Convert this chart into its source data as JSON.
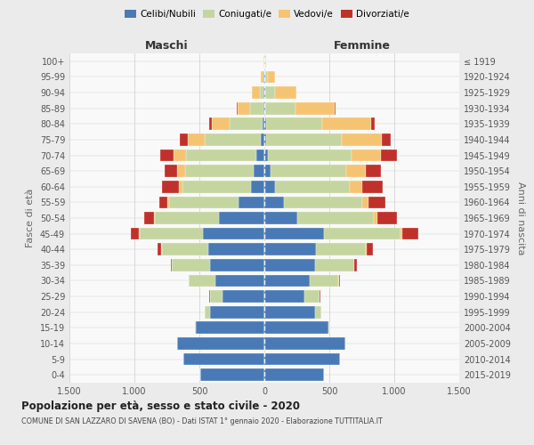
{
  "age_groups": [
    "0-4",
    "5-9",
    "10-14",
    "15-19",
    "20-24",
    "25-29",
    "30-34",
    "35-39",
    "40-44",
    "45-49",
    "50-54",
    "55-59",
    "60-64",
    "65-69",
    "70-74",
    "75-79",
    "80-84",
    "85-89",
    "90-94",
    "95-99",
    "100+"
  ],
  "birth_years": [
    "2015-2019",
    "2010-2014",
    "2005-2009",
    "2000-2004",
    "1995-1999",
    "1990-1994",
    "1985-1989",
    "1980-1984",
    "1975-1979",
    "1970-1974",
    "1965-1969",
    "1960-1964",
    "1955-1959",
    "1950-1954",
    "1945-1949",
    "1940-1944",
    "1935-1939",
    "1930-1934",
    "1925-1929",
    "1920-1924",
    "≤ 1919"
  ],
  "colors": {
    "celibi": "#4a7ab5",
    "coniugati": "#c5d5a0",
    "vedovi": "#f5c472",
    "divorziati": "#c0312b"
  },
  "males": {
    "celibi": [
      490,
      620,
      670,
      530,
      420,
      320,
      380,
      420,
      430,
      470,
      350,
      200,
      100,
      80,
      60,
      30,
      15,
      8,
      5,
      4,
      2
    ],
    "coniugati": [
      0,
      0,
      0,
      5,
      40,
      100,
      200,
      290,
      360,
      490,
      490,
      530,
      530,
      530,
      540,
      430,
      250,
      100,
      30,
      5,
      0
    ],
    "vedovi": [
      0,
      0,
      0,
      0,
      0,
      0,
      0,
      1,
      2,
      5,
      8,
      15,
      30,
      60,
      100,
      130,
      140,
      100,
      60,
      20,
      2
    ],
    "divorziati": [
      0,
      0,
      0,
      0,
      0,
      2,
      5,
      10,
      30,
      65,
      80,
      60,
      130,
      100,
      100,
      60,
      20,
      5,
      2,
      0,
      0
    ]
  },
  "females": {
    "nubili": [
      460,
      580,
      620,
      490,
      390,
      310,
      350,
      390,
      400,
      460,
      250,
      150,
      80,
      50,
      30,
      15,
      12,
      8,
      5,
      4,
      2
    ],
    "coniugati": [
      0,
      0,
      0,
      8,
      45,
      115,
      220,
      300,
      380,
      590,
      590,
      600,
      580,
      580,
      640,
      580,
      430,
      230,
      80,
      20,
      2
    ],
    "vedovi": [
      0,
      0,
      0,
      0,
      0,
      0,
      2,
      4,
      8,
      15,
      30,
      50,
      90,
      150,
      230,
      310,
      380,
      300,
      160,
      60,
      8
    ],
    "divorziati": [
      0,
      0,
      0,
      0,
      2,
      5,
      8,
      20,
      50,
      120,
      150,
      130,
      160,
      120,
      120,
      70,
      25,
      8,
      2,
      0,
      0
    ]
  },
  "title": "Popolazione per età, sesso e stato civile - 2020",
  "subtitle": "COMUNE DI SAN LAZZARO DI SAVENA (BO) - Dati ISTAT 1° gennaio 2020 - Elaborazione TUTTITALIA.IT",
  "xlabel_left": "Maschi",
  "xlabel_right": "Femmine",
  "ylabel_left": "Fasce di età",
  "ylabel_right": "Anni di nascita",
  "xlim": 1500,
  "xticks": [
    -1500,
    -1000,
    -500,
    0,
    500,
    1000,
    1500
  ],
  "xticklabels": [
    "1.500",
    "1.000",
    "500",
    "0",
    "500",
    "1.000",
    "1.500"
  ],
  "bg_color": "#ebebeb",
  "plot_bg": "#f9f9f9",
  "legend_labels": [
    "Celibi/Nubili",
    "Coniugati/e",
    "Vedovi/e",
    "Divorziati/e"
  ],
  "grid_color": "#cccccc"
}
